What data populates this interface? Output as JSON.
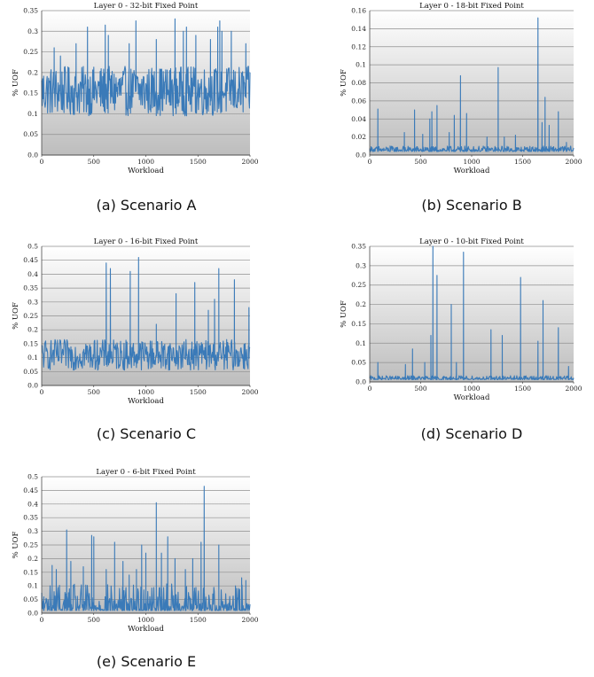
{
  "figure": {
    "captions": [
      "(a) Scenario A",
      "(b) Scenario B",
      "(c) Scenario C",
      "(d) Scenario D",
      "(e) Scenario E"
    ]
  },
  "colors": {
    "series": "#3a7ab8",
    "grid": "#8f8f8f",
    "axis": "#333333"
  },
  "chart_data": [
    {
      "type": "line",
      "title": "Layer 0 - 32-bit Fixed Point",
      "xlabel": "Workload",
      "ylabel": "% UOF",
      "xlim": [
        0,
        2000
      ],
      "ylim": [
        0,
        0.35
      ],
      "xticks": [
        "0",
        "500",
        "1000",
        "1500",
        "2000"
      ],
      "yticks": [
        "0.0",
        "0.05",
        "0.1",
        "0.15",
        "0.2",
        "0.25",
        "0.3",
        "0.35"
      ],
      "grid": true,
      "series": [
        {
          "values_shape": "dense noise band",
          "baseline": 0.155,
          "noise": 0.06,
          "spikes": [
            [
              120,
              0.26
            ],
            [
              180,
              0.24
            ],
            [
              330,
              0.27
            ],
            [
              440,
              0.31
            ],
            [
              610,
              0.315
            ],
            [
              640,
              0.29
            ],
            [
              840,
              0.27
            ],
            [
              905,
              0.325
            ],
            [
              1100,
              0.28
            ],
            [
              1280,
              0.33
            ],
            [
              1360,
              0.3
            ],
            [
              1390,
              0.31
            ],
            [
              1480,
              0.29
            ],
            [
              1620,
              0.28
            ],
            [
              1690,
              0.31
            ],
            [
              1710,
              0.325
            ],
            [
              1730,
              0.3
            ],
            [
              1820,
              0.3
            ],
            [
              1960,
              0.27
            ]
          ]
        }
      ]
    },
    {
      "type": "line",
      "title": "Layer 0 - 18-bit Fixed Point",
      "xlabel": "Workload",
      "ylabel": "% UOF",
      "xlim": [
        0,
        2000
      ],
      "ylim": [
        0,
        0.16
      ],
      "xticks": [
        "0",
        "500",
        "1000",
        "1500",
        "2000"
      ],
      "yticks": [
        "0.0",
        "0.02",
        "0.04",
        "0.06",
        "0.08",
        "0.1",
        "0.12",
        "0.14",
        "0.16"
      ],
      "grid": true,
      "series": [
        {
          "values_shape": "low baseline with spikes",
          "baseline": 0.004,
          "noise": 0.006,
          "spikes": [
            [
              80,
              0.051
            ],
            [
              200,
              0.01
            ],
            [
              340,
              0.025
            ],
            [
              440,
              0.05
            ],
            [
              520,
              0.023
            ],
            [
              590,
              0.04
            ],
            [
              610,
              0.048
            ],
            [
              660,
              0.055
            ],
            [
              780,
              0.025
            ],
            [
              830,
              0.044
            ],
            [
              890,
              0.088
            ],
            [
              950,
              0.046
            ],
            [
              1150,
              0.02
            ],
            [
              1260,
              0.097
            ],
            [
              1320,
              0.02
            ],
            [
              1430,
              0.022
            ],
            [
              1650,
              0.152
            ],
            [
              1690,
              0.036
            ],
            [
              1720,
              0.064
            ],
            [
              1760,
              0.033
            ],
            [
              1850,
              0.048
            ],
            [
              1930,
              0.014
            ]
          ]
        }
      ]
    },
    {
      "type": "line",
      "title": "Layer 0 - 16-bit Fixed Point",
      "xlabel": "Workload",
      "ylabel": "% UOF",
      "xlim": [
        0,
        2000
      ],
      "ylim": [
        0,
        0.5
      ],
      "xticks": [
        "0",
        "500",
        "1000",
        "1500",
        "2000"
      ],
      "yticks": [
        "0.0",
        "0.05",
        "0.1",
        "0.15",
        "0.2",
        "0.25",
        "0.3",
        "0.35",
        "0.4",
        "0.45",
        "0.5"
      ],
      "grid": true,
      "series": [
        {
          "values_shape": "dense noise band",
          "baseline": 0.11,
          "noise": 0.055,
          "spikes": [
            [
              620,
              0.44
            ],
            [
              660,
              0.42
            ],
            [
              850,
              0.41
            ],
            [
              930,
              0.46
            ],
            [
              1100,
              0.22
            ],
            [
              1290,
              0.33
            ],
            [
              1470,
              0.37
            ],
            [
              1600,
              0.27
            ],
            [
              1660,
              0.31
            ],
            [
              1700,
              0.42
            ],
            [
              1850,
              0.38
            ],
            [
              1990,
              0.28
            ]
          ]
        }
      ]
    },
    {
      "type": "line",
      "title": "Layer 0 - 10-bit Fixed Point",
      "xlabel": "Workload",
      "ylabel": "% UOF",
      "xlim": [
        0,
        2000
      ],
      "ylim": [
        0,
        0.35
      ],
      "xticks": [
        "0",
        "500",
        "1000",
        "1500",
        "2000"
      ],
      "yticks": [
        "0.0",
        "0.05",
        "0.1",
        "0.15",
        "0.2",
        "0.25",
        "0.3",
        "0.35"
      ],
      "grid": true,
      "series": [
        {
          "values_shape": "low baseline with spikes",
          "baseline": 0.006,
          "noise": 0.01,
          "spikes": [
            [
              80,
              0.05
            ],
            [
              350,
              0.045
            ],
            [
              420,
              0.085
            ],
            [
              540,
              0.05
            ],
            [
              600,
              0.12
            ],
            [
              620,
              0.35
            ],
            [
              660,
              0.275
            ],
            [
              800,
              0.2
            ],
            [
              850,
              0.05
            ],
            [
              920,
              0.335
            ],
            [
              1190,
              0.135
            ],
            [
              1300,
              0.12
            ],
            [
              1480,
              0.27
            ],
            [
              1650,
              0.105
            ],
            [
              1700,
              0.21
            ],
            [
              1850,
              0.14
            ],
            [
              1950,
              0.04
            ]
          ]
        }
      ]
    },
    {
      "type": "line",
      "title": "Layer 0 - 6-bit Fixed Point",
      "xlabel": "Workload",
      "ylabel": "% UOF",
      "xlim": [
        0,
        2000
      ],
      "ylim": [
        0,
        0.5
      ],
      "xticks": [
        "0",
        "500",
        "1000",
        "1500",
        "2000"
      ],
      "yticks": [
        "0.0",
        "0.05",
        "0.1",
        "0.15",
        "0.2",
        "0.25",
        "0.3",
        "0.35",
        "0.4",
        "0.45",
        "0.5"
      ],
      "grid": true,
      "series": [
        {
          "values_shape": "sparse spikes",
          "baseline": 0.01,
          "noise": 0.04,
          "spikes": [
            [
              20,
              0.06
            ],
            [
              100,
              0.175
            ],
            [
              140,
              0.16
            ],
            [
              240,
              0.305
            ],
            [
              280,
              0.19
            ],
            [
              400,
              0.17
            ],
            [
              480,
              0.285
            ],
            [
              500,
              0.28
            ],
            [
              620,
              0.16
            ],
            [
              700,
              0.26
            ],
            [
              780,
              0.19
            ],
            [
              840,
              0.14
            ],
            [
              910,
              0.16
            ],
            [
              960,
              0.25
            ],
            [
              1000,
              0.22
            ],
            [
              1100,
              0.405
            ],
            [
              1150,
              0.22
            ],
            [
              1210,
              0.28
            ],
            [
              1280,
              0.2
            ],
            [
              1380,
              0.16
            ],
            [
              1450,
              0.2
            ],
            [
              1530,
              0.26
            ],
            [
              1560,
              0.465
            ],
            [
              1700,
              0.25
            ],
            [
              1860,
              0.1
            ],
            [
              1920,
              0.13
            ],
            [
              1960,
              0.12
            ]
          ]
        }
      ]
    }
  ]
}
